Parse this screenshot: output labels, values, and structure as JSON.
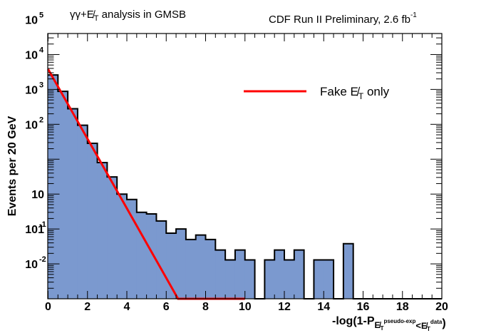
{
  "chart_data": {
    "type": "bar",
    "subtype": "histogram-step",
    "title_left": {
      "prefix": "γγ+",
      "met": "E̸",
      "sub": "T",
      "suffix": " analysis in GMSB"
    },
    "title_right": {
      "text": "CDF Run II Preliminary, 2.6 fb",
      "sup": "-1"
    },
    "ylabel": "Events per 20 GeV",
    "xlabel": {
      "main": "-log(1-P",
      "met1": "E̸",
      "sub1": "T",
      "sup1": "pseudo-exp",
      "lt": "<",
      "met2": "E̸",
      "sub2": "T",
      "sup2": "data",
      "close": ")"
    },
    "xlim": [
      0,
      20
    ],
    "ylim": [
      0.01,
      400000
    ],
    "yscale": "log",
    "x_ticks": [
      "0",
      "2",
      "4",
      "6",
      "8",
      "10",
      "12",
      "14",
      "16",
      "18",
      "20"
    ],
    "y_ticks": [
      {
        "base": "10",
        "exp": "-2"
      },
      {
        "base": "10",
        "exp": "-1"
      },
      {
        "base": "1",
        "exp": ""
      },
      {
        "base": "10",
        "exp": ""
      },
      {
        "base": "10",
        "exp": "2"
      },
      {
        "base": "10",
        "exp": "3"
      },
      {
        "base": "10",
        "exp": "4"
      },
      {
        "base": "10",
        "exp": "5"
      }
    ],
    "bin_width": 0.5,
    "bin_values": [
      26000,
      8800,
      2800,
      940,
      285,
      80,
      31,
      10,
      7,
      3.0,
      2.7,
      1.7,
      0.76,
      1.0,
      0.5,
      0.67,
      0.5,
      0.25,
      0.13,
      0.25,
      0.13,
      0,
      0.13,
      0.25,
      0.13,
      0.25,
      0,
      0.13,
      0.13,
      0,
      0.38,
      0,
      0,
      0,
      0,
      0,
      0,
      0,
      0,
      0
    ],
    "fill_color": "#7b99cf",
    "series": [
      {
        "name": "Fake E̸T only",
        "color": "#ff0000",
        "x": [
          0,
          6.6,
          10
        ],
        "y": [
          38000,
          0.01,
          0.01
        ]
      }
    ],
    "legend": {
      "placement": "top-right",
      "label_main": "Fake ",
      "label_met": "E̸",
      "label_sub": "T",
      "label_tail": " only"
    }
  }
}
